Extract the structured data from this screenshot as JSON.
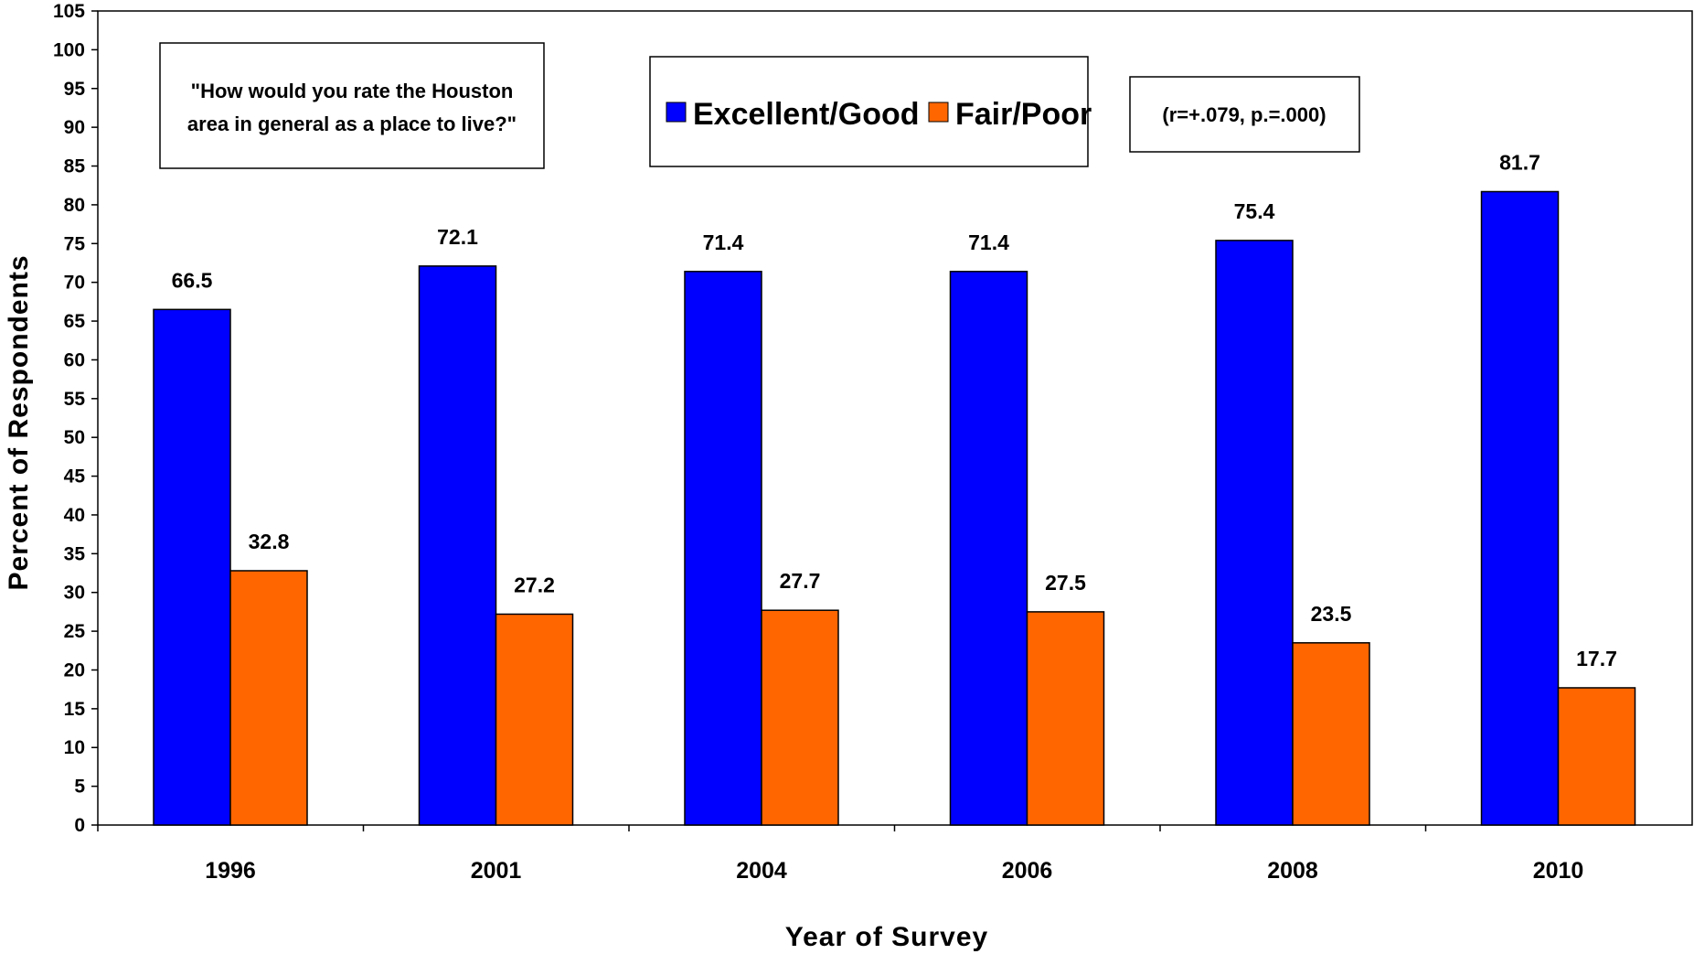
{
  "chart_data": {
    "type": "bar",
    "xlabel": "Year of Survey",
    "ylabel": "Percent of Respondents",
    "ylim": [
      0,
      105
    ],
    "ytick_step": 5,
    "categories": [
      "1996",
      "2001",
      "2004",
      "2006",
      "2008",
      "2010"
    ],
    "series": [
      {
        "name": "Excellent/Good",
        "color": "#0000FF",
        "values": [
          66.5,
          72.1,
          71.4,
          71.4,
          75.4,
          81.7
        ],
        "labels": [
          "66.5",
          "72.1",
          "71.4",
          "71.4",
          "75.4",
          "81.7"
        ]
      },
      {
        "name": "Fair/Poor",
        "color": "#FF6600",
        "values": [
          32.8,
          27.2,
          27.7,
          27.5,
          23.5,
          17.7
        ],
        "labels": [
          "32.8",
          "27.2",
          "27.7",
          "27.5",
          "23.5",
          "17.7"
        ]
      }
    ],
    "annotations": {
      "question_line1": "\"How would you rate the Houston",
      "question_line2": "area in general as a place to live?\"",
      "stats": "(r=+.079, p.=.000)"
    },
    "legend_position": "top-center",
    "grid": false
  }
}
